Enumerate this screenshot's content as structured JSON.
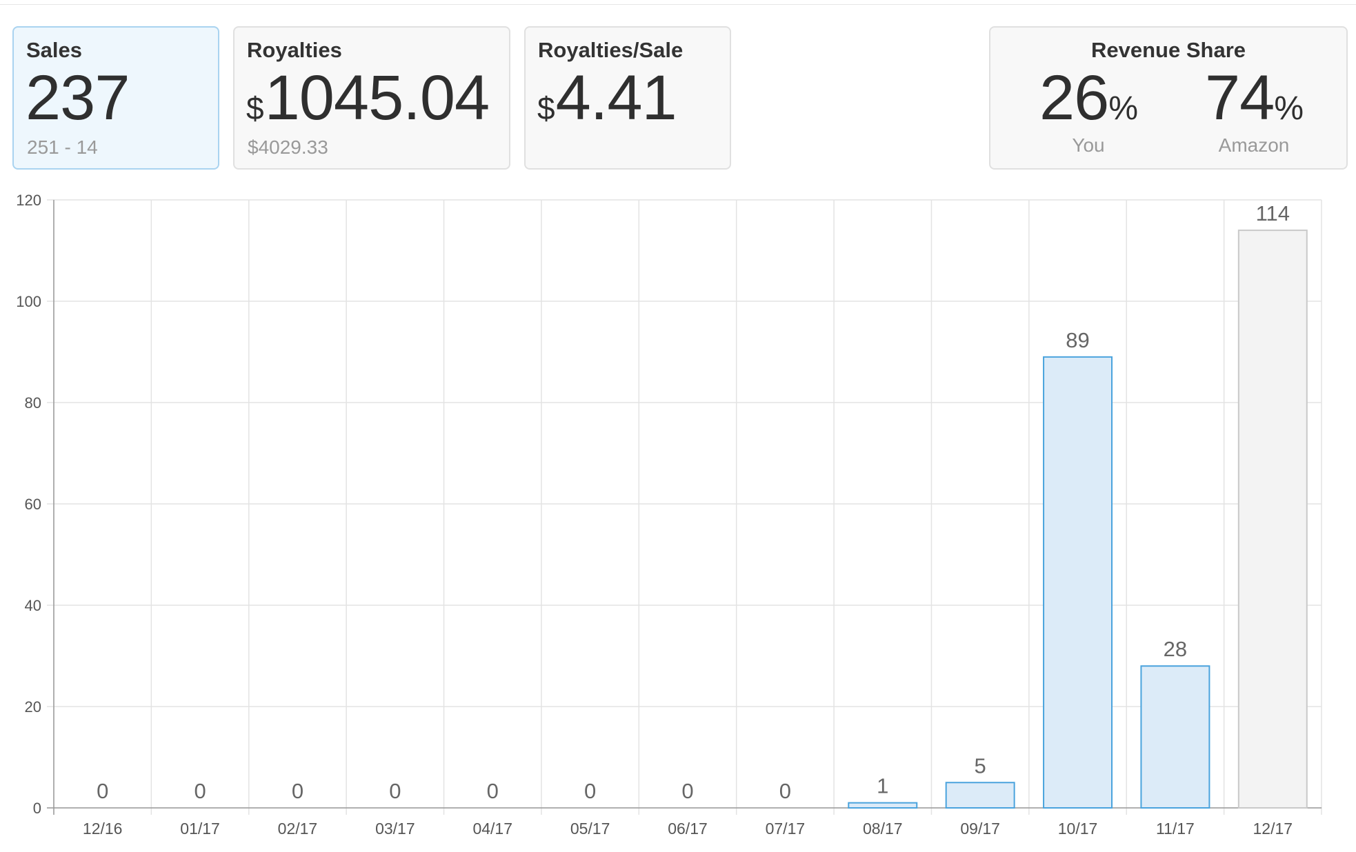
{
  "cards": {
    "sales": {
      "title": "Sales",
      "value": "237",
      "sub": "251 - 14"
    },
    "royalties": {
      "title": "Royalties",
      "currency": "$",
      "value": "1045.04",
      "sub": "$4029.33"
    },
    "royalties_per_sale": {
      "title": "Royalties/Sale",
      "currency": "$",
      "value": "4.41"
    },
    "revenue_share": {
      "title": "Revenue Share",
      "you": {
        "value": "26",
        "unit": "%",
        "label": "You"
      },
      "amazon": {
        "value": "74",
        "unit": "%",
        "label": "Amazon"
      }
    }
  },
  "colors": {
    "accent_fill": "#dcebf8",
    "accent_stroke": "#4aa3dd",
    "current_fill": "#f3f3f3",
    "current_stroke": "#c9c9c9"
  },
  "chart_data": {
    "type": "bar",
    "categories": [
      "12/16",
      "01/17",
      "02/17",
      "03/17",
      "04/17",
      "05/17",
      "06/17",
      "07/17",
      "08/17",
      "09/17",
      "10/17",
      "11/17",
      "12/17"
    ],
    "values": [
      0,
      0,
      0,
      0,
      0,
      0,
      0,
      0,
      1,
      5,
      89,
      28,
      114
    ],
    "highlighted_last": true,
    "yticks": [
      0,
      20,
      40,
      60,
      80,
      100,
      120
    ],
    "ylim": [
      0,
      120
    ],
    "grid": true,
    "xlabel": "",
    "ylabel": ""
  }
}
